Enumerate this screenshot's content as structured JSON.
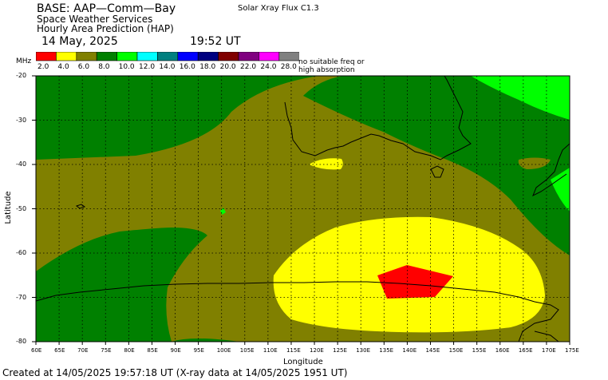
{
  "header": {
    "base": "BASE: AAP—Comm—Bay",
    "service": "Space Weather Services",
    "product": "Hourly Area Prediction (HAP)",
    "date": "14 May, 2025",
    "time": "19:52 UT",
    "flux": "Solar Xray Flux C1.3"
  },
  "legend": {
    "unit": "MHz",
    "values": [
      "2.0",
      "4.0",
      "6.0",
      "8.0",
      "10.0",
      "12.0",
      "14.0",
      "16.0",
      "18.0",
      "20.0",
      "22.0",
      "24.0",
      "28.0"
    ],
    "colors": [
      "#ff0000",
      "#ffff00",
      "#808000",
      "#008000",
      "#00ff00",
      "#00ffff",
      "#008080",
      "#0000ff",
      "#000080",
      "#800000",
      "#800080",
      "#ff00ff",
      "#808080"
    ],
    "note_line1": "no suitable freq or",
    "note_line2": "high absorption"
  },
  "axes": {
    "ylabel": "Latitude",
    "xlabel": "Longitude",
    "lat_ticks": [
      "-20",
      "-30",
      "-40",
      "-50",
      "-60",
      "-70",
      "-80"
    ],
    "lon_ticks": [
      "60E",
      "65E",
      "70E",
      "75E",
      "80E",
      "85E",
      "90E",
      "95E",
      "100E",
      "105E",
      "110E",
      "115E",
      "120E",
      "125E",
      "130E",
      "135E",
      "140E",
      "145E",
      "150E",
      "155E",
      "160E",
      "165E",
      "170E",
      "175E"
    ]
  },
  "footer": "Created at 14/05/2025 19:57:18 UT (X-ray data at 14/05/2025 1951 UT)"
}
